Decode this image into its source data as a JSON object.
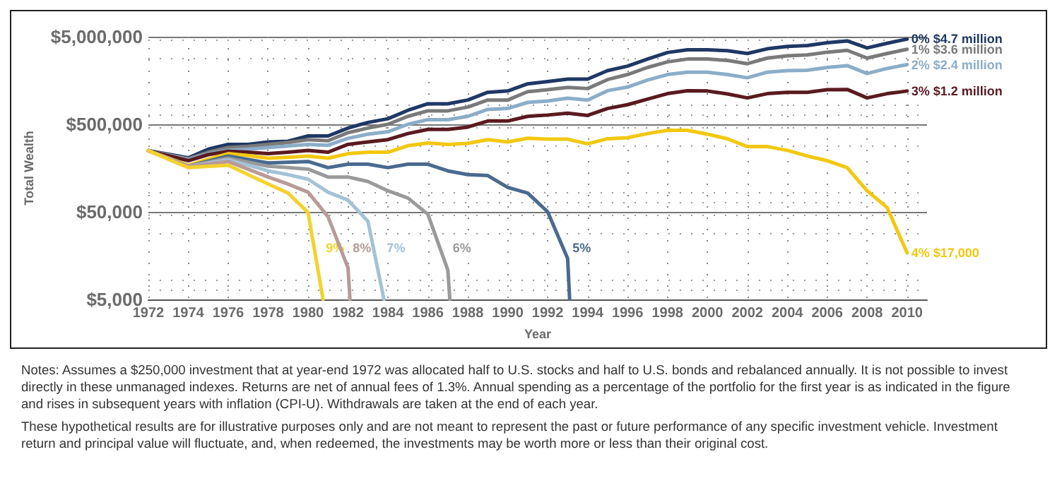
{
  "chart_data": {
    "type": "line",
    "xlabel": "Year",
    "ylabel": "Total Wealth",
    "log": "y",
    "grid": true,
    "legend": false,
    "marker": "none",
    "line_style": "solid",
    "xlim": [
      1972,
      2011
    ],
    "xticks": [
      1972,
      1974,
      1976,
      1978,
      1980,
      1982,
      1984,
      1986,
      1988,
      1990,
      1992,
      1994,
      1996,
      1998,
      2000,
      2002,
      2004,
      2006,
      2008,
      2010
    ],
    "ylim": [
      5000,
      5000000
    ],
    "yticks": [
      {
        "value": 5000,
        "label": "$5,000"
      },
      {
        "value": 50000,
        "label": "$50,000"
      },
      {
        "value": 500000,
        "label": "$500,000"
      },
      {
        "value": 5000000,
        "label": "$5,000,000"
      }
    ],
    "x": [
      1972,
      1974,
      1975,
      1976,
      1977,
      1978,
      1979,
      1980,
      1981,
      1982,
      1983,
      1984,
      1985,
      1986,
      1987,
      1988,
      1989,
      1990,
      1991,
      1992,
      1993,
      1994,
      1995,
      1996,
      1997,
      1998,
      1999,
      2000,
      2001,
      2002,
      2003,
      2004,
      2005,
      2006,
      2007,
      2008,
      2009,
      2010
    ],
    "series": [
      {
        "name": "0% $4.7 million",
        "color": "#1f3864",
        "values": [
          250000,
          207000,
          260000,
          295000,
          295000,
          314000,
          320000,
          368000,
          368000,
          453000,
          525000,
          579000,
          722000,
          857000,
          857000,
          946000,
          1160000,
          1200000,
          1450000,
          1540000,
          1640000,
          1640000,
          2050000,
          2310000,
          2780000,
          3300000,
          3550000,
          3550000,
          3460000,
          3220000,
          3640000,
          3870000,
          3960000,
          4270000,
          4480000,
          3720000,
          4210000,
          4700000
        ]
      },
      {
        "name": "1% $3.6 million",
        "color": "#7a7a7a",
        "values": [
          250000,
          202000,
          240000,
          271000,
          280000,
          295000,
          310000,
          334000,
          325000,
          401000,
          453000,
          500000,
          616000,
          713000,
          713000,
          786000,
          946000,
          946000,
          1180000,
          1240000,
          1320000,
          1280000,
          1620000,
          1850000,
          2230000,
          2580000,
          2780000,
          2780000,
          2680000,
          2460000,
          2850000,
          3030000,
          3100000,
          3330000,
          3500000,
          2850000,
          3220000,
          3600000
        ]
      },
      {
        "name": "2% $2.4 million",
        "color": "#8badc8",
        "values": [
          250000,
          197000,
          230000,
          252000,
          260000,
          271000,
          283000,
          295000,
          288000,
          346000,
          386000,
          411000,
          500000,
          565000,
          565000,
          616000,
          740000,
          758000,
          889000,
          922000,
          993000,
          946000,
          1210000,
          1330000,
          1600000,
          1850000,
          1970000,
          1970000,
          1850000,
          1700000,
          1970000,
          2050000,
          2070000,
          2230000,
          2340000,
          1900000,
          2170000,
          2400000
        ]
      },
      {
        "name": "3% $1.2 million",
        "color": "#5a1a20",
        "values": [
          250000,
          192000,
          225000,
          246000,
          240000,
          231000,
          240000,
          252000,
          240000,
          295000,
          314000,
          334000,
          392000,
          437000,
          437000,
          465000,
          545000,
          545000,
          616000,
          638000,
          671000,
          631000,
          758000,
          837000,
          968000,
          1120000,
          1210000,
          1200000,
          1110000,
          1000000,
          1120000,
          1160000,
          1160000,
          1240000,
          1250000,
          1000000,
          1120000,
          1200000
        ]
      },
      {
        "name": "4% $17,000",
        "color": "#f2c811",
        "values": [
          250000,
          170000,
          200000,
          231000,
          220000,
          205000,
          210000,
          217000,
          205000,
          231000,
          240000,
          240000,
          285000,
          306000,
          295000,
          303000,
          334000,
          314000,
          346000,
          338000,
          338000,
          299000,
          342000,
          351000,
          392000,
          427000,
          427000,
          386000,
          342000,
          278000,
          278000,
          252000,
          217000,
          192000,
          160000,
          87000,
          56000,
          17000
        ]
      },
      {
        "name": "5%",
        "color": "#4a6a8f",
        "x": [
          1972,
          1974,
          1976,
          1978,
          1980,
          1981,
          1982,
          1983,
          1984,
          1985,
          1986,
          1987,
          1988,
          1989,
          1990,
          1991,
          1992,
          1993,
          1993.1
        ],
        "values": [
          250000,
          166000,
          217000,
          181000,
          188000,
          160000,
          175000,
          175000,
          160000,
          175000,
          175000,
          147000,
          133000,
          130000,
          95000,
          82000,
          50000,
          14700,
          5000
        ]
      },
      {
        "name": "6%",
        "color": "#9a9a9a",
        "x": [
          1972,
          1974,
          1976,
          1978,
          1979,
          1980,
          1981,
          1982,
          1983,
          1984,
          1985,
          1986,
          1987,
          1987.1
        ],
        "values": [
          250000,
          166000,
          205000,
          166000,
          160000,
          154000,
          125000,
          125000,
          111000,
          87000,
          72000,
          47000,
          10800,
          5000
        ]
      },
      {
        "name": "7%",
        "color": "#a3c2d6",
        "x": [
          1972,
          1974,
          1976,
          1978,
          1979,
          1980,
          1981,
          1982,
          1983,
          1983.8
        ],
        "values": [
          250000,
          166000,
          197000,
          147000,
          133000,
          118000,
          84000,
          68000,
          39000,
          5000
        ]
      },
      {
        "name": "8%",
        "color": "#b89a98",
        "x": [
          1972,
          1974,
          1976,
          1978,
          1979,
          1980,
          1981,
          1982,
          1982.1
        ],
        "values": [
          250000,
          166000,
          188000,
          125000,
          104000,
          84000,
          44000,
          11500,
          5000
        ]
      },
      {
        "name": "9%",
        "color": "#f3d22e",
        "x": [
          1972,
          1974,
          1976,
          1978,
          1979,
          1980,
          1980.75
        ],
        "values": [
          250000,
          160000,
          170000,
          104000,
          82000,
          49000,
          5000
        ]
      }
    ],
    "annotations": [
      "Notes: Assumes a $250,000 investment that at year-end 1972 was allocated half to U.S. stocks and half to U.S. bonds and rebalanced annually. It is not possible to invest directly in these unmanaged indexes. Returns are net of annual fees of 1.3%. Annual spending as a percentage of the portfolio for the first year is as indicated in the figure and rises in subsequent years with inflation (CPI-U). Withdrawals are taken at the end of each year.",
      "These hypothetical results are for illustrative purposes only and are not meant to represent the past or future performance of any specific investment vehicle. Investment return and principal value will fluctuate, and, when redeemed, the investments may be worth more or less than their original cost."
    ]
  }
}
